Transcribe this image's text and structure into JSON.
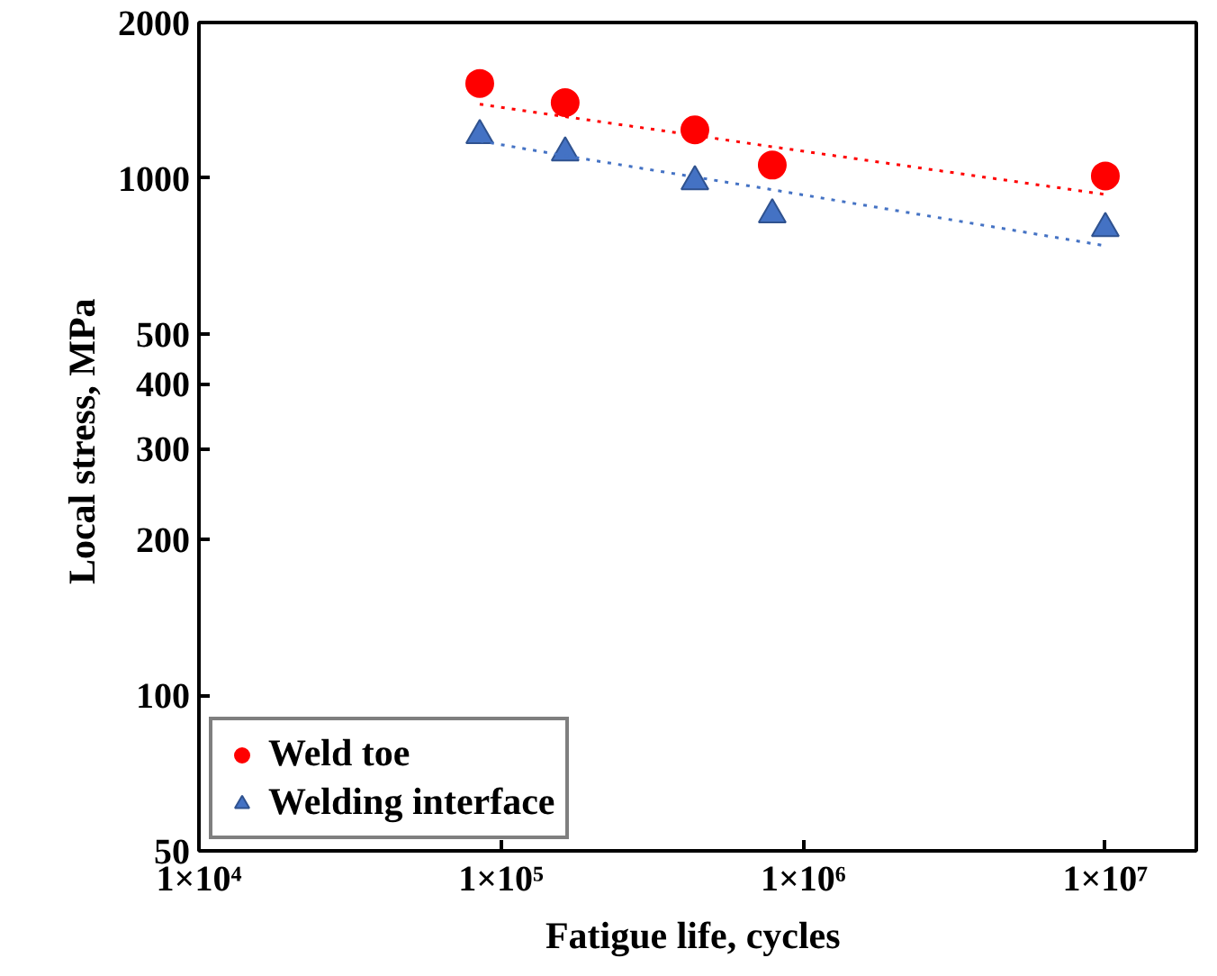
{
  "chart_data": {
    "type": "scatter",
    "xlabel": "Fatigue life,  cycles",
    "ylabel": "Local  stress, MPa",
    "log": "xy",
    "xlim": [
      10000,
      20000000
    ],
    "ylim": [
      50,
      2000
    ],
    "xticks": [
      {
        "value": 10000,
        "label": "1×10⁴"
      },
      {
        "value": 100000,
        "label": "1×10⁵"
      },
      {
        "value": 1000000,
        "label": "1×10⁶"
      },
      {
        "value": 10000000,
        "label": "1×10⁷"
      }
    ],
    "yticks": [
      50,
      100,
      200,
      300,
      400,
      500,
      1000,
      2000
    ],
    "grid": false,
    "legend": "bottom left",
    "x": [
      85000,
      163000,
      438000,
      790000,
      10000000
    ],
    "series": [
      {
        "name": "Weld toe",
        "color": "#ff0000",
        "marker": "circle",
        "values": [
          1525,
          1400,
          1240,
          1060,
          1010
        ]
      },
      {
        "name": "Welding interface",
        "color": "#4472c4",
        "marker": "triangle",
        "values": [
          1210,
          1120,
          985,
          850,
          800
        ]
      },
      {
        "type": "line",
        "color": "#ff0000",
        "line_style": "dotted",
        "values": [
          1390,
          1315,
          1210,
          1150,
          930
        ]
      },
      {
        "type": "line",
        "color": "#4472c4",
        "line_style": "dotted",
        "values": [
          1180,
          1105,
          1005,
          950,
          740
        ]
      }
    ]
  }
}
